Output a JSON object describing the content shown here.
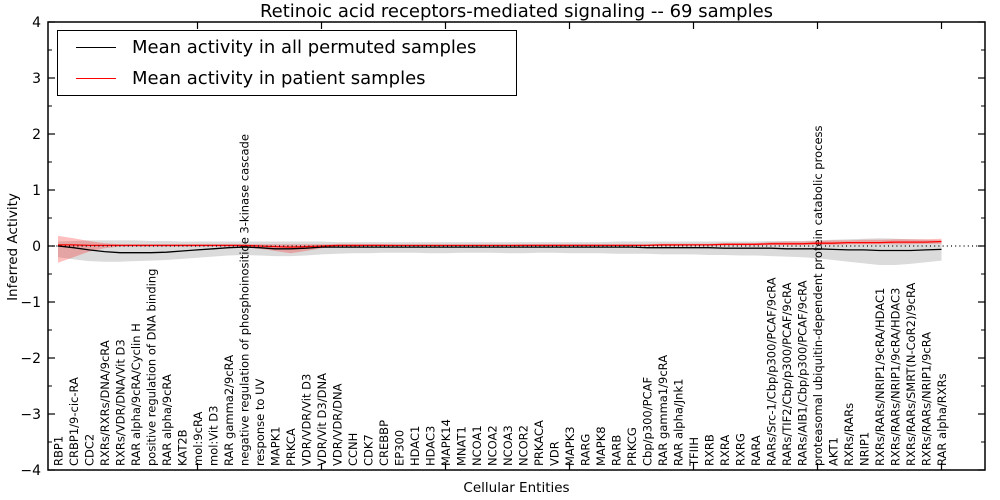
{
  "chart_data": {
    "type": "line",
    "title": "Retinoic acid receptors-mediated signaling -- 69 samples",
    "xlabel": "Cellular Entities",
    "ylabel": "Inferred Activity",
    "ylim": [
      -4,
      4
    ],
    "ytick_values": [
      4,
      3,
      2,
      1,
      0,
      -1,
      -2,
      -3,
      -4
    ],
    "ytick_labels": [
      "4",
      "3",
      "2",
      "1",
      "0",
      "−1",
      "−2",
      "−3",
      "−4"
    ],
    "legend_position": "upper left",
    "grid": false,
    "zero_line": true,
    "colors": {
      "permuted_line": "#000000",
      "permuted_band": "#000000",
      "patient_line": "#ff0000",
      "patient_band": "#ff0000",
      "zero_line": "#000000"
    },
    "categories": [
      "RBP1",
      "CRBP1/9-cic-RA",
      "CDC2",
      "RXRs/RXRs/DNA/9cRA",
      "RXRs/VDR/DNA/Vit D3",
      "RAR alpha/9cRA/Cyclin H",
      "positive regulation of DNA binding",
      "RAR alpha/9cRA",
      "KAT2B",
      "mol:9cRA",
      "mol:Vit D3",
      "RAR gamma2/9cRA",
      "negative regulation of phosphoinositide 3-kinase cascade",
      "response to UV",
      "MAPK1",
      "PRKCA",
      "VDR/VDR/Vit D3",
      "VDR/Vit D3/DNA",
      "VDR/VDR/DNA",
      "CCNH",
      "CDK7",
      "CREBBP",
      "EP300",
      "HDAC1",
      "HDAC3",
      "MAPK14",
      "MNAT1",
      "NCOA1",
      "NCOA2",
      "NCOA3",
      "NCOR2",
      "PRKACA",
      "VDR",
      "MAPK3",
      "RARG",
      "MAPK8",
      "RARB",
      "PRKCG",
      "Cbp/p300/PCAF",
      "RAR gamma1/9cRA",
      "RAR alpha/Jnk1",
      "TFIIH",
      "RXRB",
      "RXRA",
      "RXRG",
      "RARA",
      "RARs/Src-1/Cbp/p300/PCAF/9cRA",
      "RARs/TIF2/Cbp/p300/PCAF/9cRA",
      "RARs/AIB1/Cbp/p300/PCAF/9cRA",
      "proteasomal ubiquitin-dependent protein catabolic process",
      "AKT1",
      "RXRs/RARs",
      "NRIP1",
      "RXRs/RARs/NRIP1/9cRA/HDAC1",
      "RXRs/RARs/NRIP1/9cRA/HDAC3",
      "RXRs/RARs/SMRT(N-CoR2)/9cRA",
      "RXRs/RARs/NRIP1/9cRA",
      "RAR alpha/RXRs"
    ],
    "series": [
      {
        "name": "Mean activity in all permuted samples",
        "color": "#000000",
        "values": [
          0.0,
          -0.03,
          -0.07,
          -0.1,
          -0.12,
          -0.12,
          -0.12,
          -0.11,
          -0.09,
          -0.07,
          -0.05,
          -0.03,
          -0.02,
          -0.03,
          -0.05,
          -0.05,
          -0.04,
          -0.02,
          -0.02,
          -0.02,
          -0.02,
          -0.02,
          -0.02,
          -0.02,
          -0.02,
          -0.02,
          -0.02,
          -0.02,
          -0.02,
          -0.02,
          -0.02,
          -0.02,
          -0.02,
          -0.02,
          -0.02,
          -0.02,
          -0.02,
          -0.02,
          -0.03,
          -0.03,
          -0.03,
          -0.03,
          -0.03,
          -0.04,
          -0.04,
          -0.04,
          -0.04,
          -0.05,
          -0.05,
          -0.05,
          -0.06,
          -0.07,
          -0.07,
          -0.08,
          -0.08,
          -0.08,
          -0.07,
          -0.06
        ],
        "band_upper": [
          0.08,
          0.09,
          0.1,
          0.1,
          0.1,
          0.1,
          0.09,
          0.09,
          0.08,
          0.08,
          0.08,
          0.08,
          0.08,
          0.08,
          0.08,
          0.08,
          0.08,
          0.08,
          0.07,
          0.07,
          0.07,
          0.07,
          0.07,
          0.07,
          0.07,
          0.07,
          0.07,
          0.07,
          0.07,
          0.07,
          0.07,
          0.07,
          0.07,
          0.07,
          0.07,
          0.07,
          0.08,
          0.08,
          0.08,
          0.08,
          0.08,
          0.08,
          0.08,
          0.08,
          0.08,
          0.08,
          0.09,
          0.09,
          0.09,
          0.1,
          0.11,
          0.12,
          0.13,
          0.14,
          0.13,
          0.12,
          0.11,
          0.1
        ],
        "band_lower": [
          -0.2,
          -0.24,
          -0.27,
          -0.28,
          -0.28,
          -0.27,
          -0.26,
          -0.25,
          -0.23,
          -0.21,
          -0.19,
          -0.17,
          -0.16,
          -0.17,
          -0.18,
          -0.18,
          -0.17,
          -0.15,
          -0.14,
          -0.13,
          -0.13,
          -0.12,
          -0.12,
          -0.12,
          -0.13,
          -0.13,
          -0.12,
          -0.12,
          -0.12,
          -0.13,
          -0.13,
          -0.12,
          -0.12,
          -0.13,
          -0.13,
          -0.13,
          -0.14,
          -0.14,
          -0.14,
          -0.15,
          -0.15,
          -0.15,
          -0.16,
          -0.16,
          -0.17,
          -0.17,
          -0.18,
          -0.19,
          -0.2,
          -0.22,
          -0.25,
          -0.28,
          -0.31,
          -0.34,
          -0.34,
          -0.32,
          -0.29,
          -0.26
        ]
      },
      {
        "name": "Mean activity in patient samples",
        "color": "#ff0000",
        "values": [
          0.02,
          0.02,
          0.01,
          0.01,
          0.01,
          0.01,
          0.01,
          0.01,
          0.01,
          0.01,
          0.01,
          0.01,
          0.01,
          0.0,
          -0.01,
          -0.02,
          -0.01,
          0.0,
          0.01,
          0.01,
          0.01,
          0.01,
          0.01,
          0.01,
          0.01,
          0.01,
          0.01,
          0.01,
          0.01,
          0.01,
          0.01,
          0.01,
          0.01,
          0.01,
          0.01,
          0.01,
          0.01,
          0.01,
          0.01,
          0.02,
          0.02,
          0.02,
          0.02,
          0.03,
          0.03,
          0.03,
          0.04,
          0.04,
          0.04,
          0.05,
          0.05,
          0.06,
          0.06,
          0.06,
          0.07,
          0.07,
          0.07,
          0.08
        ],
        "band_upper": [
          0.18,
          0.14,
          0.09,
          0.05,
          0.03,
          0.03,
          0.03,
          0.03,
          0.03,
          0.03,
          0.03,
          0.03,
          0.03,
          0.03,
          0.03,
          0.03,
          0.03,
          0.03,
          0.03,
          0.03,
          0.03,
          0.03,
          0.02,
          0.02,
          0.02,
          0.02,
          0.02,
          0.02,
          0.02,
          0.02,
          0.03,
          0.03,
          0.03,
          0.03,
          0.03,
          0.03,
          0.03,
          0.03,
          0.03,
          0.04,
          0.04,
          0.04,
          0.04,
          0.05,
          0.05,
          0.05,
          0.07,
          0.08,
          0.08,
          0.09,
          0.1,
          0.1,
          0.11,
          0.11,
          0.12,
          0.12,
          0.12,
          0.13
        ],
        "band_lower": [
          -0.3,
          -0.2,
          -0.1,
          -0.04,
          -0.01,
          -0.01,
          -0.01,
          -0.01,
          -0.01,
          -0.01,
          -0.01,
          -0.01,
          -0.02,
          -0.05,
          -0.09,
          -0.13,
          -0.09,
          -0.04,
          -0.01,
          -0.01,
          0.0,
          0.0,
          0.0,
          0.0,
          0.0,
          0.0,
          0.0,
          0.0,
          0.0,
          0.0,
          0.0,
          0.0,
          0.0,
          0.0,
          0.0,
          0.0,
          0.0,
          0.0,
          0.0,
          0.0,
          0.0,
          0.01,
          0.01,
          0.01,
          0.01,
          0.01,
          0.02,
          0.02,
          0.02,
          0.02,
          0.02,
          0.03,
          0.03,
          0.03,
          0.03,
          0.03,
          0.04,
          0.04
        ]
      }
    ]
  }
}
